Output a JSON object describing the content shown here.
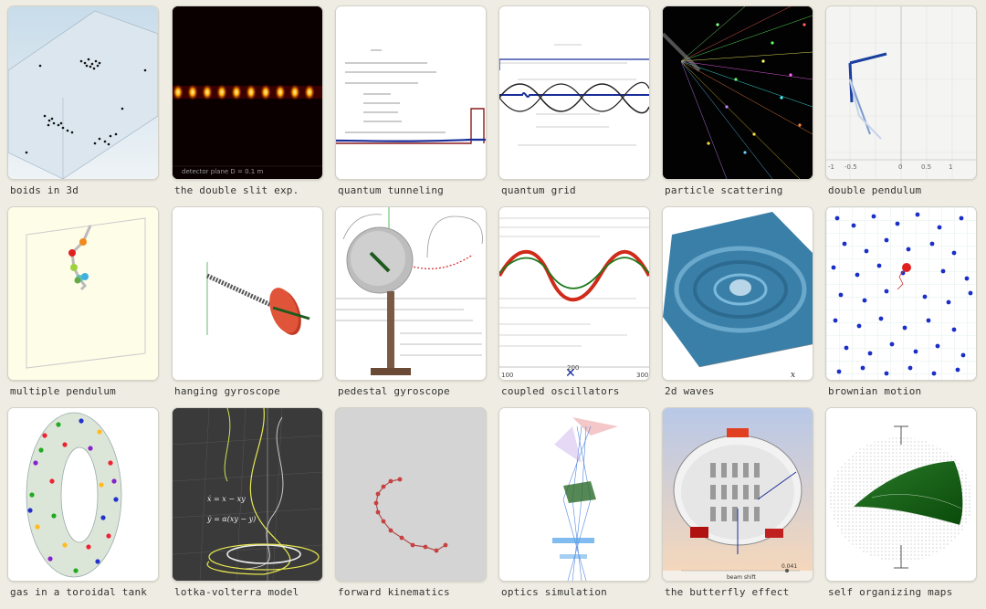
{
  "gallery": {
    "items": [
      {
        "id": "boids",
        "label": "boids in 3d"
      },
      {
        "id": "double-slit",
        "label": "the double slit exp.",
        "caption": "detector plane D = 0.1 m"
      },
      {
        "id": "quantum-tunneling",
        "label": "quantum tunneling"
      },
      {
        "id": "quantum-grid",
        "label": "quantum grid"
      },
      {
        "id": "particle-scattering",
        "label": "particle scattering"
      },
      {
        "id": "double-pendulum",
        "label": "double pendulum",
        "ticks": [
          "-1",
          "-0.5",
          "0",
          "0.5",
          "1"
        ]
      },
      {
        "id": "multiple-pendulum",
        "label": "multiple pendulum"
      },
      {
        "id": "hanging-gyroscope",
        "label": "hanging gyroscope"
      },
      {
        "id": "pedestal-gyroscope",
        "label": "pedestal gyroscope"
      },
      {
        "id": "coupled-oscillators",
        "label": "coupled oscillators",
        "ticks": [
          "100",
          "200",
          "300"
        ]
      },
      {
        "id": "2d-waves",
        "label": "2d waves"
      },
      {
        "id": "brownian-motion",
        "label": "brownian motion"
      },
      {
        "id": "toroidal-tank",
        "label": "gas in a toroidal tank"
      },
      {
        "id": "lotka-volterra",
        "label": "lotka-volterra model",
        "eq1": "ẋ = x − xy",
        "eq2": "ẏ = α(xy − y)"
      },
      {
        "id": "forward-kinematics",
        "label": "forward kinematics"
      },
      {
        "id": "optics",
        "label": "optics simulation"
      },
      {
        "id": "butterfly",
        "label": "the butterfly effect",
        "readout": "0.041",
        "axis_label": "beam shift"
      },
      {
        "id": "som",
        "label": "self organizing maps"
      }
    ]
  },
  "colors": {
    "background": "#efede3",
    "accent_blue": "#1a2f9a",
    "accent_red": "#d43a28"
  }
}
